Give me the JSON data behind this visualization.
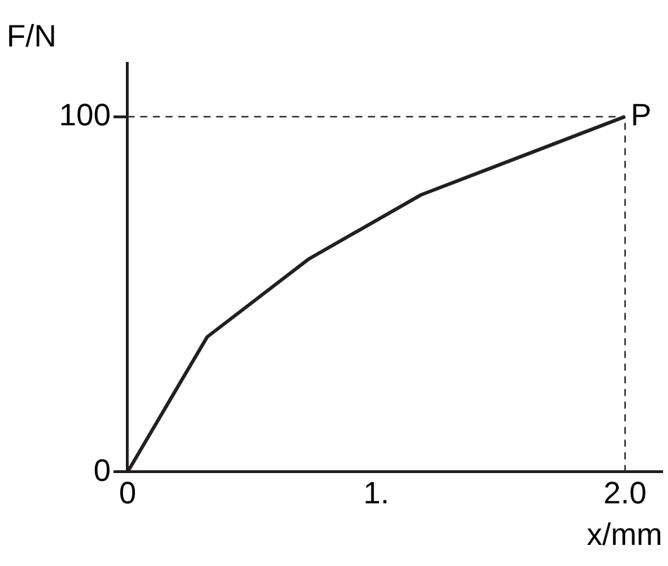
{
  "chart_data": {
    "type": "line",
    "xlabel": "x/mm",
    "ylabel": "F/N",
    "x": [
      0,
      0.32,
      0.73,
      1.18,
      2.0
    ],
    "series": [
      {
        "color": "#231f20",
        "values": [
          0,
          38,
          60,
          78,
          100
        ]
      }
    ],
    "xlim": [
      0,
      2.15
    ],
    "ylim": [
      0,
      115
    ],
    "xticks": [
      0,
      {
        "value": 1,
        "label": "1."
      },
      {
        "value": 2,
        "label": "2.0"
      }
    ],
    "yticks": [
      0,
      100
    ],
    "ref_lines": [
      {
        "axis": "y",
        "value": 100,
        "line_style": "dashed"
      },
      {
        "axis": "x",
        "value": 2.0,
        "line_style": "dashed"
      }
    ],
    "annotations": [
      {
        "text": "P",
        "x": 2.0,
        "y": 100
      }
    ],
    "grid": false,
    "legend": false,
    "marker": "none",
    "line_style": "solid"
  }
}
